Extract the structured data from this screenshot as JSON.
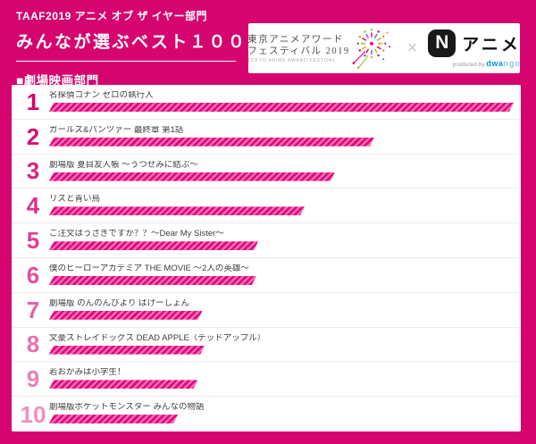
{
  "theme": {
    "background": "#d5046f",
    "card": "#ffffff",
    "separator": "#ececec",
    "text_dark": "#3c3c3c"
  },
  "header": {
    "subtitle": "TAAF2019 アニメ オブ ザ イヤー部門",
    "title": "みんなが選ぶベスト１００",
    "section": "■劇場映画部門"
  },
  "logos": {
    "taaf": {
      "line1": "東京アニメアワード",
      "line2": "フェスティバル 2019",
      "line3": "TOKYO ANIME AWARD FESTIVAL"
    },
    "separator": "×",
    "n_anime": {
      "n": "N",
      "label": "アニメ",
      "produced_by": "produced by ",
      "dwango_parts": [
        "dwa",
        "ngo"
      ]
    }
  },
  "chart_data": {
    "type": "bar",
    "orientation": "horizontal",
    "title": "TAAF2019 アニメ オブ ザ イヤー部門 みんなが選ぶベスト100 ■劇場映画部門",
    "value_unit": "relative bar length, % of rank-1 bar (no numeric labels shown)",
    "legend": "none",
    "grid": "off",
    "ranks": [
      "1",
      "2",
      "3",
      "4",
      "5",
      "6",
      "7",
      "8",
      "9",
      "10"
    ],
    "categories": [
      "名探偵コナン ゼロの執行人",
      "ガールズ&パンツァー 最終章 第1話",
      "劇場版 夏目友人帳 ～うつせみに結ぶ～",
      "リズと青い鳥",
      "ご注文はうさぎですか？？～Dear My Sister～",
      "僕のヒーローアカデミア THE MOVIE ～2人の英雄～",
      "劇場版 のんのんびより ばけーしょん",
      "文豪ストレイドッグス DEAD APPLE（デッドアップル）",
      "若おかみは小学生！",
      "劇場版ポケットモンスター みんなの物語"
    ],
    "values": [
      100,
      70,
      61.5,
      55,
      45,
      44.6,
      33,
      33.5,
      32,
      27.7
    ],
    "colors": {
      "bar_stripe_dark": "#e4007f",
      "bar_stripe_light": "#f170b0",
      "rank_number_start": "#d4006e",
      "rank_number_end": "#ee8fc0"
    }
  }
}
